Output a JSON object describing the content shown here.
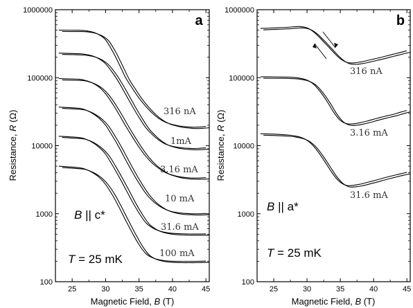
{
  "chart_data": [
    {
      "type": "line",
      "panel_label": "a",
      "xlabel": "Magnetic Field, ",
      "xlabel_var": "B",
      "xlabel_unit": " (T)",
      "ylabel": "Resistance, ",
      "ylabel_var": "R",
      "ylabel_unit": " (Ω)",
      "xlim": [
        22.5,
        45.5
      ],
      "ylim": [
        100,
        1000000
      ],
      "yscale": "log",
      "xticks": [
        "25",
        "30",
        "35",
        "40",
        "45"
      ],
      "xtick_values": [
        25,
        30,
        35,
        40,
        45
      ],
      "yticks": [
        "100",
        "1000",
        "10000",
        "100000",
        "1000000"
      ],
      "ytick_values": [
        100,
        1000,
        10000,
        100000,
        1000000
      ],
      "annotation_field": "B || c*",
      "annotation_field_var": "B",
      "annotation_field_text": " || c*",
      "annotation_temp_var": "T",
      "annotation_temp_text": " = 25 mK",
      "series": [
        {
          "name": "316 nA",
          "x": [
            23,
            26,
            27,
            28,
            29,
            30,
            31,
            32,
            33,
            34,
            35,
            36,
            37,
            38,
            39,
            40,
            41,
            42,
            43,
            44,
            45
          ],
          "y": [
            500000,
            498000,
            490000,
            470000,
            430000,
            360000,
            250000,
            160000,
            100000,
            70000,
            50000,
            38000,
            30000,
            25000,
            22000,
            20500,
            19500,
            19000,
            18700,
            18800,
            19200
          ]
        },
        {
          "name": "1mA",
          "x": [
            23,
            26,
            27,
            28,
            29,
            30,
            31,
            32,
            33,
            34,
            35,
            36,
            37,
            38,
            39,
            40,
            41,
            42,
            43,
            44,
            45
          ],
          "y": [
            230000,
            225000,
            220000,
            210000,
            190000,
            160000,
            120000,
            85000,
            57000,
            38000,
            26000,
            18500,
            14500,
            12000,
            10500,
            9800,
            9400,
            9200,
            9100,
            9150,
            9300
          ]
        },
        {
          "name": "3.16 mA",
          "x": [
            23,
            26,
            27,
            28,
            29,
            30,
            31,
            32,
            33,
            34,
            35,
            36,
            37,
            38,
            39,
            40,
            41,
            42,
            43,
            44,
            45
          ],
          "y": [
            97000,
            95000,
            91000,
            84000,
            73000,
            58000,
            42000,
            29000,
            19500,
            13500,
            9500,
            7000,
            5500,
            4600,
            4000,
            3700,
            3500,
            3400,
            3350,
            3350,
            3400
          ]
        },
        {
          "name": "10 mA",
          "x": [
            23,
            26,
            27,
            28,
            29,
            30,
            31,
            32,
            33,
            34,
            35,
            36,
            37,
            38,
            39,
            40,
            41,
            42,
            43,
            44,
            45
          ],
          "y": [
            37000,
            35500,
            33500,
            30000,
            25500,
            20000,
            14000,
            9500,
            6200,
            4100,
            2800,
            2000,
            1550,
            1300,
            1150,
            1070,
            1030,
            1010,
            1000,
            1000,
            1010
          ]
        },
        {
          "name": "31.6 mA",
          "x": [
            23,
            26,
            27,
            28,
            29,
            30,
            31,
            32,
            33,
            34,
            35,
            36,
            37,
            38,
            39,
            40,
            41,
            42,
            43,
            44,
            45
          ],
          "y": [
            13800,
            13200,
            12500,
            11200,
            9500,
            7500,
            5200,
            3500,
            2300,
            1500,
            1020,
            740,
            620,
            560,
            530,
            515,
            508,
            505,
            503,
            503,
            505
          ]
        },
        {
          "name": "100 mA",
          "x": [
            23,
            26,
            27,
            28,
            29,
            30,
            31,
            32,
            33,
            34,
            35,
            36,
            37,
            38,
            39,
            40,
            41,
            42,
            43,
            44,
            45
          ],
          "y": [
            5000,
            4750,
            4500,
            4050,
            3450,
            2700,
            1900,
            1250,
            800,
            520,
            350,
            260,
            225,
            210,
            203,
            200,
            199,
            199,
            199,
            200,
            201
          ]
        }
      ]
    },
    {
      "type": "line",
      "panel_label": "b",
      "xlabel": "Magnetic Field, ",
      "xlabel_var": "B",
      "xlabel_unit": " (T)",
      "ylabel": "Resistance, ",
      "ylabel_var": "R",
      "ylabel_unit": " (Ω)",
      "xlim": [
        22.5,
        45.5
      ],
      "ylim": [
        100,
        1000000
      ],
      "yscale": "log",
      "xticks": [
        "25",
        "30",
        "35",
        "40",
        "45"
      ],
      "xtick_values": [
        25,
        30,
        35,
        40,
        45
      ],
      "yticks": [
        "100",
        "1000",
        "10000",
        "100000",
        "1000000"
      ],
      "ytick_values": [
        100,
        1000,
        10000,
        100000,
        1000000
      ],
      "annotation_field": "B || a*",
      "annotation_field_var": "B",
      "annotation_field_text": " || a*",
      "annotation_temp_var": "T",
      "annotation_temp_text": " = 25 mK",
      "series": [
        {
          "name": "316 nA",
          "x": [
            23,
            25,
            27,
            28,
            29,
            30,
            31,
            32,
            33,
            34,
            35,
            36,
            37,
            38,
            39,
            40,
            41,
            42,
            43,
            44,
            45
          ],
          "y": [
            530000,
            540000,
            550000,
            560000,
            565000,
            540000,
            470000,
            380000,
            300000,
            235000,
            190000,
            168000,
            165000,
            170000,
            178000,
            188000,
            198000,
            210000,
            222000,
            235000,
            248000
          ]
        },
        {
          "name": "3.16 mA",
          "x": [
            23,
            25,
            27,
            28,
            29,
            30,
            31,
            32,
            33,
            34,
            35,
            36,
            37,
            38,
            39,
            40,
            41,
            42,
            43,
            44,
            45
          ],
          "y": [
            103000,
            103000,
            102000,
            101000,
            98000,
            92000,
            80000,
            62000,
            45000,
            31000,
            23500,
            21000,
            21000,
            21800,
            23000,
            24500,
            26000,
            27500,
            29000,
            31000,
            33000
          ]
        },
        {
          "name": "31.6 mA",
          "x": [
            23,
            25,
            27,
            28,
            29,
            30,
            31,
            32,
            33,
            34,
            35,
            36,
            37,
            38,
            39,
            40,
            41,
            42,
            43,
            44,
            45
          ],
          "y": [
            15000,
            14800,
            14400,
            14000,
            13300,
            12000,
            9800,
            7300,
            5200,
            3700,
            2900,
            2600,
            2620,
            2720,
            2880,
            3050,
            3250,
            3450,
            3650,
            3850,
            4050
          ]
        }
      ]
    }
  ]
}
